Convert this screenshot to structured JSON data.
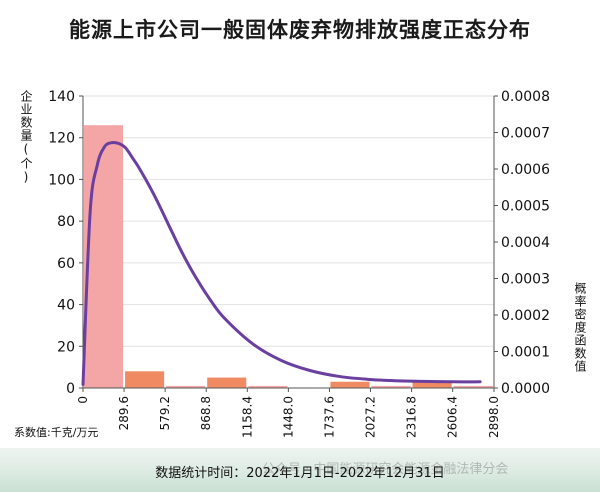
{
  "chart_data": {
    "type": "bar",
    "title": "能源上市公司一般固体废弃物排放强度正态分布",
    "ylabel_left": "企业数量(个)",
    "ylabel_right": "概率密度函数值",
    "coef_note": "系数值:千克/万元",
    "footer": "数据统计时间：2022年1月1日-2022年12月31日",
    "watermark": "公众号 · 中国能源研究会能源金融法律分会",
    "x_ticks": [
      "0",
      "289.6",
      "579.2",
      "868.8",
      "1158.4",
      "1448.0",
      "1737.6",
      "2027.2",
      "2316.8",
      "2606.4",
      "2898.0"
    ],
    "y_left_ticks": [
      "0",
      "20",
      "40",
      "60",
      "80",
      "100",
      "120",
      "140"
    ],
    "y_right_ticks": [
      "0.0000",
      "0.0001",
      "0.0002",
      "0.0003",
      "0.0004",
      "0.0005",
      "0.0006",
      "0.0007",
      "0.0008"
    ],
    "ylim_left": [
      0,
      140
    ],
    "ylim_right": [
      0,
      0.0008
    ],
    "xlim": [
      0,
      2898.0
    ],
    "bars": [
      {
        "x0": 0,
        "x1": 289.6,
        "value": 126,
        "color": "#f4a5a5"
      },
      {
        "x0": 289.6,
        "x1": 579.2,
        "value": 8,
        "color": "#f08a63"
      },
      {
        "x0": 579.2,
        "x1": 868.8,
        "value": 1,
        "color": "#f4a5a5"
      },
      {
        "x0": 868.8,
        "x1": 1158.4,
        "value": 5,
        "color": "#f08a63"
      },
      {
        "x0": 1158.4,
        "x1": 1448.0,
        "value": 1,
        "color": "#f4a5a5"
      },
      {
        "x0": 1737.6,
        "x1": 2027.2,
        "value": 3,
        "color": "#f08a63"
      },
      {
        "x0": 2027.2,
        "x1": 2316.8,
        "value": 1,
        "color": "#f4a5a5"
      },
      {
        "x0": 2316.8,
        "x1": 2606.4,
        "value": 3,
        "color": "#f08a63"
      },
      {
        "x0": 2606.4,
        "x1": 2898.0,
        "value": 1,
        "color": "#f4a5a5"
      }
    ],
    "density_curve": {
      "color": "#6b3fa0",
      "x": [
        0,
        50,
        100,
        150,
        200,
        250,
        300,
        350,
        400,
        500,
        600,
        700,
        800,
        900,
        1000,
        1200,
        1400,
        1600,
        1800,
        2000,
        2200,
        2400,
        2600,
        2800
      ],
      "y": [
        1e-05,
        0.00048,
        0.00061,
        0.00066,
        0.000672,
        0.00067,
        0.000658,
        0.00063,
        0.0006,
        0.00053,
        0.00045,
        0.00037,
        0.0003,
        0.00024,
        0.00019,
        0.00012,
        7.5e-05,
        4.8e-05,
        3.2e-05,
        2.4e-05,
        2e-05,
        1.8e-05,
        1.7e-05,
        1.7e-05
      ]
    }
  }
}
